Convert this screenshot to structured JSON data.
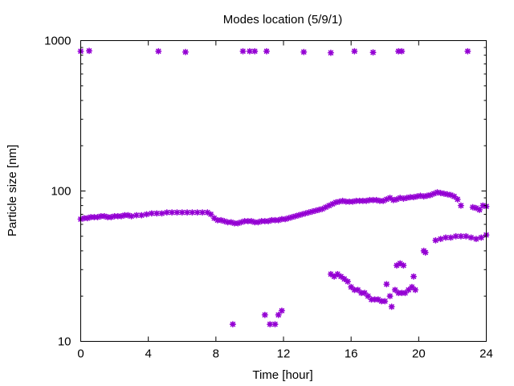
{
  "chart_data": {
    "type": "scatter",
    "title": "Modes location (5/9/1)",
    "xlabel": "Time [hour]",
    "ylabel": "Particle size [nm]",
    "xlim": [
      0,
      24
    ],
    "ylim": [
      10,
      1000
    ],
    "yscale": "log",
    "x_ticks": [
      0,
      4,
      8,
      12,
      16,
      20,
      24
    ],
    "x_tick_labels": [
      "0",
      "4",
      "8",
      "12",
      "16",
      "20",
      "24"
    ],
    "y_ticks": [
      10,
      100,
      1000
    ],
    "y_tick_labels": [
      "10",
      "100",
      "1000"
    ],
    "grid": false,
    "legend": "none",
    "marker_color": "#9400D3",
    "marker": "star",
    "series": [
      {
        "points": [
          [
            0.0,
            850
          ],
          [
            0.5,
            855
          ],
          [
            4.6,
            850
          ],
          [
            6.2,
            840
          ],
          [
            9.6,
            850
          ],
          [
            10.0,
            850
          ],
          [
            10.3,
            850
          ],
          [
            11.0,
            850
          ],
          [
            13.2,
            840
          ],
          [
            14.8,
            830
          ],
          [
            16.2,
            850
          ],
          [
            17.3,
            835
          ],
          [
            18.8,
            850
          ],
          [
            19.0,
            850
          ],
          [
            22.9,
            850
          ],
          [
            0.0,
            65
          ],
          [
            0.2,
            66
          ],
          [
            0.4,
            66
          ],
          [
            0.6,
            67
          ],
          [
            0.8,
            67
          ],
          [
            1.0,
            67
          ],
          [
            1.2,
            68
          ],
          [
            1.4,
            68
          ],
          [
            1.6,
            67
          ],
          [
            1.8,
            67
          ],
          [
            2.0,
            68
          ],
          [
            2.2,
            68
          ],
          [
            2.4,
            68
          ],
          [
            2.6,
            69
          ],
          [
            2.8,
            69
          ],
          [
            3.0,
            68
          ],
          [
            3.3,
            69
          ],
          [
            3.6,
            69
          ],
          [
            3.9,
            70
          ],
          [
            4.2,
            71
          ],
          [
            4.5,
            71
          ],
          [
            4.8,
            71
          ],
          [
            5.1,
            72
          ],
          [
            5.4,
            72
          ],
          [
            5.7,
            72
          ],
          [
            6.0,
            72
          ],
          [
            6.3,
            72
          ],
          [
            6.6,
            72
          ],
          [
            6.9,
            72
          ],
          [
            7.2,
            72
          ],
          [
            7.5,
            72
          ],
          [
            7.7,
            70
          ],
          [
            7.9,
            66
          ],
          [
            8.1,
            64
          ],
          [
            8.3,
            64
          ],
          [
            8.5,
            63
          ],
          [
            8.7,
            62
          ],
          [
            8.9,
            62
          ],
          [
            9.1,
            61
          ],
          [
            9.3,
            61
          ],
          [
            9.5,
            62
          ],
          [
            9.7,
            63
          ],
          [
            9.9,
            63
          ],
          [
            10.1,
            63
          ],
          [
            10.3,
            62
          ],
          [
            10.5,
            62
          ],
          [
            10.7,
            63
          ],
          [
            10.9,
            63
          ],
          [
            11.1,
            63
          ],
          [
            11.3,
            64
          ],
          [
            11.5,
            64
          ],
          [
            11.7,
            64
          ],
          [
            11.9,
            65
          ],
          [
            12.1,
            65
          ],
          [
            12.3,
            66
          ],
          [
            12.5,
            67
          ],
          [
            12.7,
            68
          ],
          [
            12.9,
            69
          ],
          [
            13.1,
            70
          ],
          [
            13.3,
            71
          ],
          [
            13.5,
            72
          ],
          [
            13.7,
            73
          ],
          [
            13.9,
            74
          ],
          [
            14.1,
            75
          ],
          [
            14.3,
            76
          ],
          [
            14.5,
            78
          ],
          [
            14.7,
            80
          ],
          [
            14.9,
            82
          ],
          [
            15.1,
            84
          ],
          [
            15.3,
            85
          ],
          [
            15.5,
            86
          ],
          [
            15.7,
            85
          ],
          [
            15.9,
            85
          ],
          [
            16.1,
            85
          ],
          [
            16.3,
            86
          ],
          [
            16.5,
            86
          ],
          [
            16.7,
            86
          ],
          [
            16.9,
            86
          ],
          [
            17.1,
            87
          ],
          [
            17.3,
            87
          ],
          [
            17.5,
            87
          ],
          [
            17.7,
            86
          ],
          [
            17.9,
            86
          ],
          [
            18.1,
            88
          ],
          [
            18.3,
            90
          ],
          [
            18.5,
            87
          ],
          [
            18.7,
            88
          ],
          [
            18.9,
            90
          ],
          [
            19.1,
            89
          ],
          [
            19.3,
            90
          ],
          [
            19.5,
            91
          ],
          [
            19.7,
            91
          ],
          [
            19.9,
            92
          ],
          [
            20.1,
            93
          ],
          [
            20.3,
            92
          ],
          [
            20.5,
            93
          ],
          [
            20.7,
            94
          ],
          [
            20.9,
            96
          ],
          [
            21.1,
            98
          ],
          [
            21.3,
            97
          ],
          [
            21.5,
            96
          ],
          [
            21.7,
            95
          ],
          [
            21.9,
            94
          ],
          [
            22.1,
            92
          ],
          [
            22.3,
            88
          ],
          [
            22.5,
            80
          ],
          [
            23.2,
            78
          ],
          [
            23.4,
            77
          ],
          [
            23.6,
            75
          ],
          [
            23.8,
            80
          ],
          [
            24.0,
            79
          ],
          [
            9.0,
            13
          ],
          [
            10.9,
            15
          ],
          [
            11.2,
            13
          ],
          [
            11.5,
            13
          ],
          [
            11.7,
            15
          ],
          [
            11.9,
            16
          ],
          [
            14.8,
            28
          ],
          [
            15.0,
            27
          ],
          [
            15.2,
            28
          ],
          [
            15.4,
            27
          ],
          [
            15.6,
            26
          ],
          [
            15.8,
            25
          ],
          [
            16.0,
            23
          ],
          [
            16.2,
            22
          ],
          [
            16.4,
            22
          ],
          [
            16.6,
            21
          ],
          [
            16.8,
            21
          ],
          [
            17.0,
            20
          ],
          [
            17.2,
            19
          ],
          [
            17.4,
            19
          ],
          [
            17.6,
            19
          ],
          [
            17.8,
            18.5
          ],
          [
            18.0,
            18.5
          ],
          [
            18.1,
            24
          ],
          [
            18.3,
            20
          ],
          [
            18.4,
            17
          ],
          [
            18.6,
            22
          ],
          [
            18.7,
            32
          ],
          [
            18.8,
            21
          ],
          [
            18.9,
            33
          ],
          [
            19.0,
            21
          ],
          [
            19.1,
            32
          ],
          [
            19.2,
            21
          ],
          [
            19.4,
            22
          ],
          [
            19.6,
            23
          ],
          [
            19.7,
            27
          ],
          [
            19.8,
            22
          ],
          [
            20.3,
            40
          ],
          [
            20.4,
            39
          ],
          [
            21.0,
            47
          ],
          [
            21.3,
            48
          ],
          [
            21.6,
            49
          ],
          [
            21.9,
            49
          ],
          [
            22.2,
            50
          ],
          [
            22.5,
            50
          ],
          [
            22.8,
            50
          ],
          [
            23.1,
            49
          ],
          [
            23.4,
            48
          ],
          [
            23.7,
            49
          ],
          [
            24.0,
            51
          ]
        ]
      }
    ]
  }
}
